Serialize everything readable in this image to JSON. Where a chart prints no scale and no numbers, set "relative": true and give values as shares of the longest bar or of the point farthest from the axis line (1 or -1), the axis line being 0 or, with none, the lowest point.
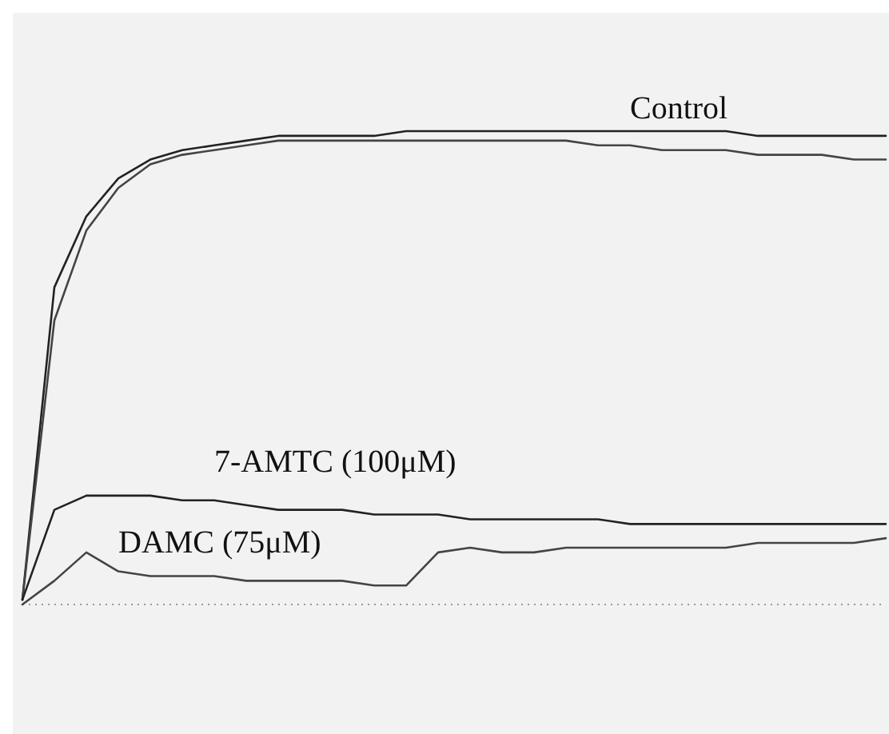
{
  "chart_data": {
    "type": "line",
    "relative": true,
    "categories": [
      null,
      null,
      null,
      null,
      null,
      null,
      null,
      null,
      null,
      null,
      null,
      null,
      null,
      null,
      null,
      null,
      null,
      null,
      null,
      null,
      null,
      null,
      null,
      null,
      null,
      null,
      null,
      null
    ],
    "series": [
      {
        "name": "Control",
        "color": "#222222",
        "values": [
          0.01,
          0.67,
          0.82,
          0.9,
          0.94,
          0.96,
          0.97,
          0.98,
          0.99,
          0.99,
          0.99,
          0.99,
          1.0,
          1.0,
          1.0,
          1.0,
          1.0,
          1.0,
          1.0,
          1.0,
          1.0,
          1.0,
          1.0,
          0.99,
          0.99,
          0.99,
          0.99,
          0.99
        ]
      },
      {
        "color": "#444444",
        "values": [
          0.01,
          0.6,
          0.79,
          0.88,
          0.93,
          0.95,
          0.96,
          0.97,
          0.98,
          0.98,
          0.98,
          0.98,
          0.98,
          0.98,
          0.98,
          0.98,
          0.98,
          0.98,
          0.97,
          0.97,
          0.96,
          0.96,
          0.96,
          0.95,
          0.95,
          0.95,
          0.94,
          0.94
        ]
      },
      {
        "name": "7-AMTC (100μM)",
        "color": "#222222",
        "values": [
          0.01,
          0.2,
          0.23,
          0.23,
          0.23,
          0.22,
          0.22,
          0.21,
          0.2,
          0.2,
          0.2,
          0.19,
          0.19,
          0.19,
          0.18,
          0.18,
          0.18,
          0.18,
          0.18,
          0.17,
          0.17,
          0.17,
          0.17,
          0.17,
          0.17,
          0.17,
          0.17,
          0.17
        ]
      },
      {
        "name": "DAMC (75μM)",
        "color": "#444444",
        "values": [
          0.0,
          0.05,
          0.11,
          0.07,
          0.06,
          0.06,
          0.06,
          0.05,
          0.05,
          0.05,
          0.05,
          0.04,
          0.04,
          0.11,
          0.12,
          0.11,
          0.11,
          0.12,
          0.12,
          0.12,
          0.12,
          0.12,
          0.12,
          0.13,
          0.13,
          0.13,
          0.13,
          0.14
        ]
      }
    ],
    "marker": "none",
    "line_style": "solid"
  }
}
